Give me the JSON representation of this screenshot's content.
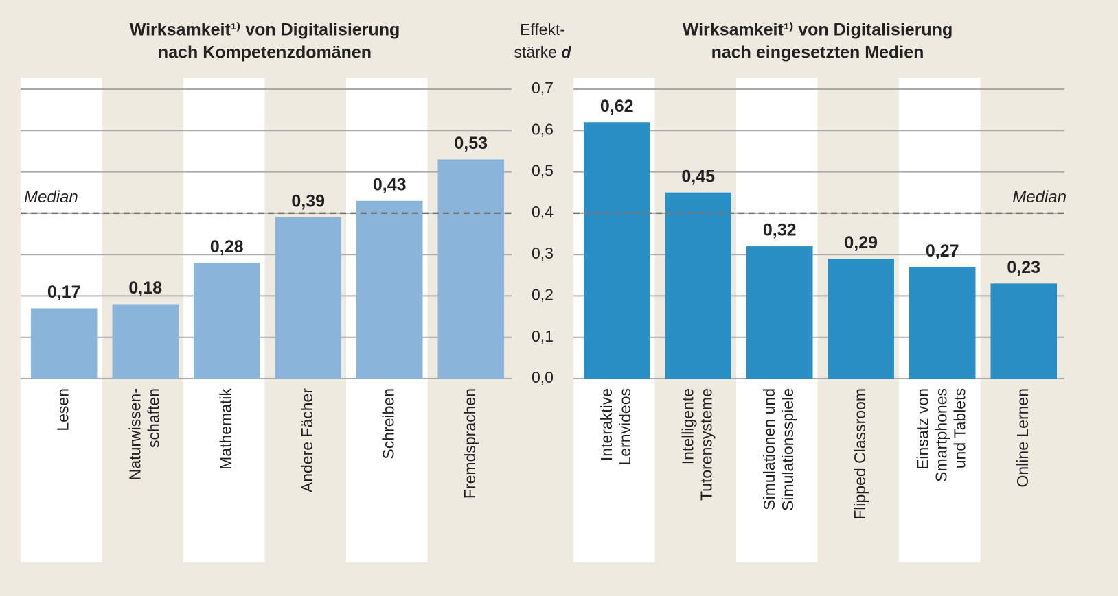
{
  "chart_data": [
    {
      "type": "bar",
      "title": [
        "Wirksamkeit¹⁾ von Digitalisierung",
        "nach Kompetenzdomänen"
      ],
      "categories": [
        [
          "Lesen"
        ],
        [
          "Naturwissen-",
          "schaften"
        ],
        [
          "Mathematik"
        ],
        [
          "Andere Fächer"
        ],
        [
          "Schreiben"
        ],
        [
          "Fremdsprachen"
        ]
      ],
      "values": [
        0.17,
        0.18,
        0.28,
        0.39,
        0.43,
        0.53
      ],
      "value_labels": [
        "0,17",
        "0,18",
        "0,28",
        "0,39",
        "0,43",
        "0,53"
      ],
      "color": "#8ab4d9",
      "ylim": [
        0,
        0.7
      ],
      "yticks": [
        {
          "value": 0,
          "label": "0,0"
        },
        {
          "value": 0.1,
          "label": "0,1"
        },
        {
          "value": 0.2,
          "label": "0,2"
        },
        {
          "value": 0.3,
          "label": "0,3"
        },
        {
          "value": 0.4,
          "label": "0,4"
        },
        {
          "value": 0.5,
          "label": "0,5"
        },
        {
          "value": 0.6,
          "label": "0,6"
        },
        {
          "value": 0.7,
          "label": "0,7"
        }
      ],
      "y_label": [
        "Effekt-",
        "stärke"
      ],
      "y_symbol": "d",
      "median": {
        "value": 0.4,
        "label": "Median"
      },
      "grid": true
    },
    {
      "type": "bar",
      "title": [
        "Wirksamkeit¹⁾ von Digitalisierung",
        "nach eingesetzten Medien"
      ],
      "categories": [
        [
          "Interaktive",
          "Lernvideos"
        ],
        [
          "Intelligente",
          "Tutorensysteme"
        ],
        [
          "Simulationen und",
          "Simulationsspiele"
        ],
        [
          "Flipped Classroom"
        ],
        [
          "Einsatz von",
          "Smartphones",
          "und Tablets"
        ],
        [
          "Online Lernen"
        ]
      ],
      "values": [
        0.62,
        0.45,
        0.32,
        0.29,
        0.27,
        0.23
      ],
      "value_labels": [
        "0,62",
        "0,45",
        "0,32",
        "0,29",
        "0,27",
        "0,23"
      ],
      "color": "#2a8fc5",
      "ylim": [
        0,
        0.7
      ],
      "median": {
        "value": 0.4,
        "label": "Median"
      }
    }
  ]
}
